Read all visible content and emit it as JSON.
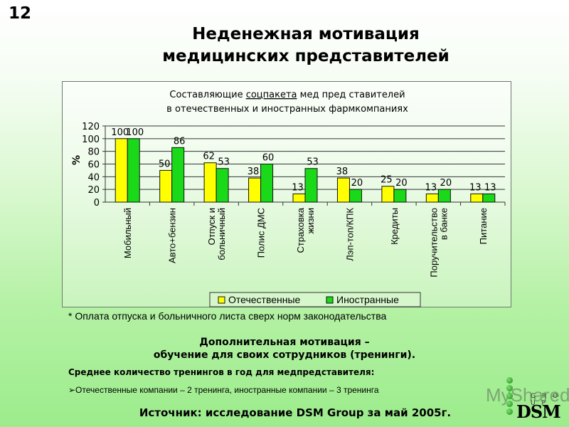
{
  "slide": {
    "number": "12",
    "title_line1": "Неденежная мотивация",
    "title_line2": "медицинских представителей"
  },
  "chart_data": {
    "type": "bar",
    "title": "Составляющие соцпакета медпредставителей в отечественных и иностранных фармкомпаниях",
    "title_line1_prefix": "Составляющие ",
    "title_line1_underlined": "соцпакета",
    "title_line1_suffix": " мед пред ставителей",
    "title_line2": "в отечественных и иностранных фармкомпаниях",
    "ylabel": "%",
    "xlabel": "",
    "ylim": [
      0,
      120
    ],
    "yticks": [
      0,
      20,
      40,
      60,
      80,
      100,
      120
    ],
    "grid": true,
    "legend_position": "bottom",
    "categories": [
      [
        "Мобильный"
      ],
      [
        "Авто+бензин"
      ],
      [
        "Отпуск и",
        "больничный"
      ],
      [
        "Полис ДМС"
      ],
      [
        "Страховка",
        "жизни"
      ],
      [
        "Лэп-топ/КПК"
      ],
      [
        "Кредиты"
      ],
      [
        "Поручительство",
        "в банке"
      ],
      [
        "Питание"
      ]
    ],
    "series": [
      {
        "name": "Отечественные",
        "color": "#ffff00",
        "values": [
          100,
          50,
          62,
          38,
          13,
          38,
          25,
          13,
          13
        ]
      },
      {
        "name": "Иностранные",
        "color": "#19d919",
        "values": [
          100,
          86,
          53,
          60,
          53,
          20,
          20,
          20,
          13
        ]
      }
    ]
  },
  "footnote": "* Оплата отпуска и больничного листа сверх норм законодательства",
  "extra": {
    "title_line1": "Дополнительная мотивация –",
    "title_line2": "обучение для своих сотрудников (тренинги).",
    "avg_heading": "Среднее количество тренингов в год для медпредставителя:",
    "avg_item": "➢Отечественные компании – 2 тренинга, иностранные компании – 3 тренинга"
  },
  "source": "Источник: исследование DSM Group за май 2005г.",
  "watermark": "MyShared",
  "logo": {
    "group": "G R O U P",
    "name": "DSM"
  }
}
